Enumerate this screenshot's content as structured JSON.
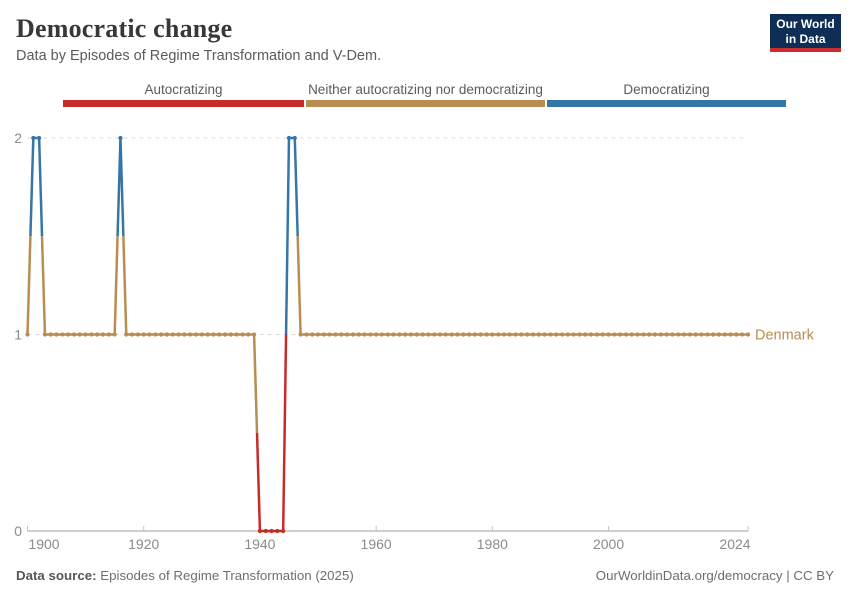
{
  "header": {
    "title": "Democratic change",
    "subtitle": "Data by Episodes of Regime Transformation and V-Dem.",
    "logo": {
      "line1": "Our World",
      "line2": "in Data"
    },
    "logo_colors": {
      "background": "#0e2e55",
      "underline": "#cb2d30"
    }
  },
  "legend": {
    "items": [
      {
        "label": "Autocratizing",
        "color": "#c62b28",
        "value": 0
      },
      {
        "label": "Neither autocratizing nor democratizing",
        "color": "#b98c52",
        "value": 1
      },
      {
        "label": "Democratizing",
        "color": "#3576a9",
        "value": 2
      }
    ]
  },
  "chart_data": {
    "type": "line",
    "title": "Democratic change",
    "entity": "Denmark",
    "xlabel": "",
    "ylabel": "",
    "xlim": [
      1900,
      2024
    ],
    "ylim": [
      0,
      2
    ],
    "grid": "dashed horizontal gridlines at y=1 and y=2",
    "x_tick_labels": [
      1900,
      1920,
      1940,
      1960,
      1980,
      2000,
      2024
    ],
    "y_tick_labels": [
      0,
      1,
      2
    ],
    "value_categories": {
      "0": "Autocratizing",
      "1": "Neither autocratizing nor democratizing",
      "2": "Democratizing"
    },
    "value_colors": {
      "0": "#c62b28",
      "1": "#b98c52",
      "2": "#3576a9"
    },
    "series_runs_note": "each run is [startYear, endYear, value]; one data point per year",
    "series_runs": [
      [
        1900,
        1900,
        1
      ],
      [
        1901,
        1902,
        2
      ],
      [
        1903,
        1915,
        1
      ],
      [
        1916,
        1916,
        2
      ],
      [
        1917,
        1939,
        1
      ],
      [
        1940,
        1944,
        0
      ],
      [
        1945,
        1946,
        2
      ],
      [
        1947,
        2024,
        1
      ]
    ],
    "axis_color": "#9e9e9e",
    "gridline_color": "#dcdcdc",
    "tick_label_color": "#8b8b8b"
  },
  "footer": {
    "source_label": "Data source:",
    "source_text": " Episodes of Regime Transformation (2025)",
    "link_text": "OurWorldinData.org/democracy | CC BY"
  }
}
